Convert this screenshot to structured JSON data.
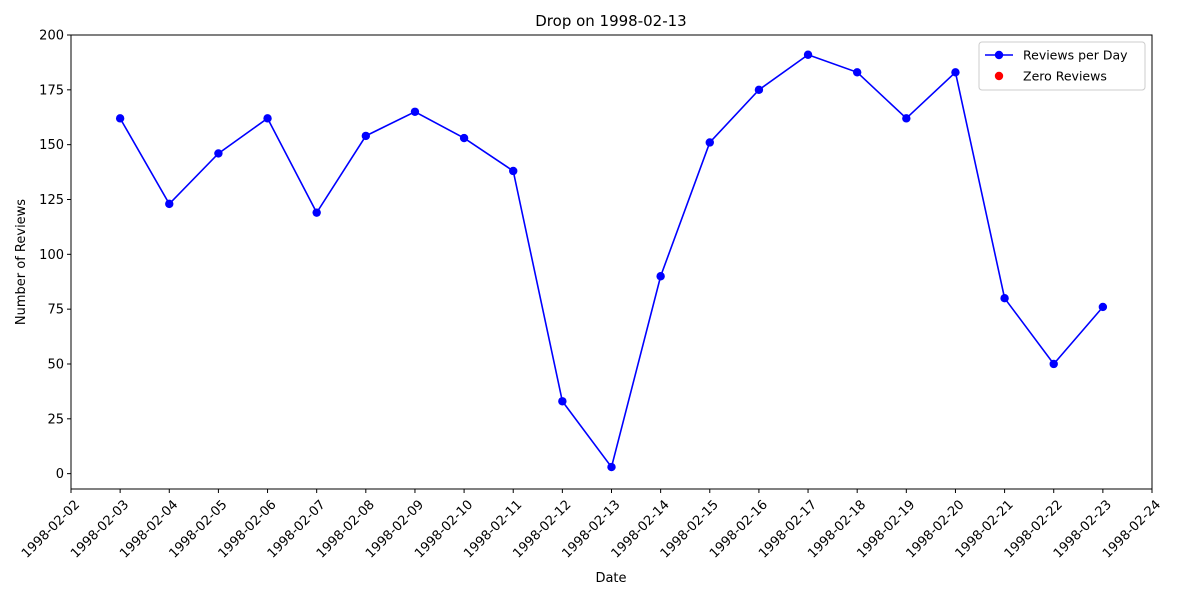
{
  "chart_data": {
    "type": "line",
    "title": "Drop on 1998-02-13",
    "xlabel": "Date",
    "ylabel": "Number of Reviews",
    "x_ticks": [
      "1998-02-02",
      "1998-02-03",
      "1998-02-04",
      "1998-02-05",
      "1998-02-06",
      "1998-02-07",
      "1998-02-08",
      "1998-02-09",
      "1998-02-10",
      "1998-02-11",
      "1998-02-12",
      "1998-02-13",
      "1998-02-14",
      "1998-02-15",
      "1998-02-16",
      "1998-02-17",
      "1998-02-18",
      "1998-02-19",
      "1998-02-20",
      "1998-02-21",
      "1998-02-22",
      "1998-02-23",
      "1998-02-24"
    ],
    "y_ticks": [
      0,
      25,
      50,
      75,
      100,
      125,
      150,
      175,
      200
    ],
    "ylim": [
      -7,
      200
    ],
    "grid": false,
    "legend_position": "top-right",
    "series": [
      {
        "name": "Reviews per Day",
        "color": "#0000ff",
        "marker": "circle",
        "x": [
          "1998-02-03",
          "1998-02-04",
          "1998-02-05",
          "1998-02-06",
          "1998-02-07",
          "1998-02-08",
          "1998-02-09",
          "1998-02-10",
          "1998-02-11",
          "1998-02-12",
          "1998-02-13",
          "1998-02-14",
          "1998-02-15",
          "1998-02-16",
          "1998-02-17",
          "1998-02-18",
          "1998-02-19",
          "1998-02-20",
          "1998-02-21",
          "1998-02-22",
          "1998-02-23"
        ],
        "values": [
          162,
          123,
          146,
          162,
          119,
          154,
          165,
          153,
          138,
          33,
          3,
          90,
          151,
          175,
          191,
          183,
          162,
          183,
          80,
          50,
          76
        ]
      },
      {
        "name": "Zero Reviews",
        "color": "#ff0000",
        "marker": "circle",
        "x": [],
        "values": []
      }
    ]
  }
}
